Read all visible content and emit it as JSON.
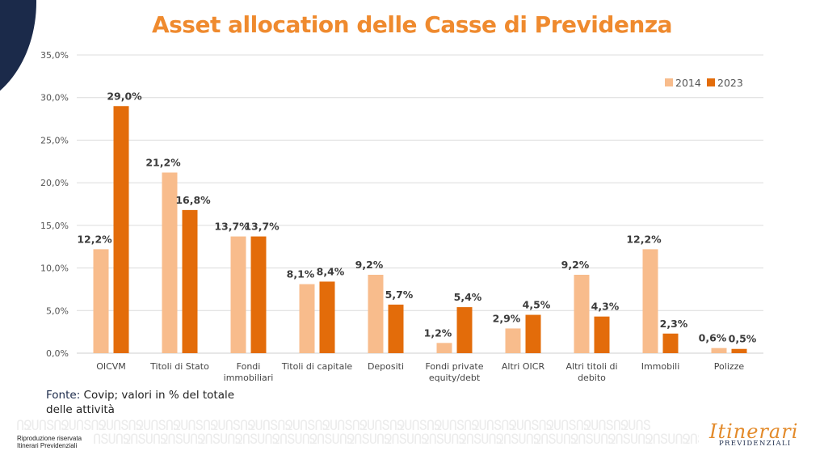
{
  "title": "Asset allocation delle Casse di Previdenza",
  "source": {
    "label": "Fonte:",
    "text": " Covip; valori in % del totale",
    "text2": "delle attività"
  },
  "footer": {
    "line1": "Riproduzione riservata",
    "line2": "Itinerari Previdenziali",
    "pattern_row1": "ՈՋՍՈՏՈՋՍՈՏՈՋՍՈՏՈՋՍՈՏՈՋՍՈՏՈՋՍՈՏՈՋՍՈՏՈՋՍՈՏՈՋՍՈՏՈՋՍՈՏՈՋՍՈՏՈՋՍՈՏՈՋՍՈՏՈՋՍՈՏՈՋՍՈՏՈՋՍՈՏՈՋՍՈՏ",
    "pattern_row2": "ՈՏՍՈՋՈՏՍՈՋՈՏՍՈՋՈՏՍՈՋՈՏՍՈՋՈՏՍՈՋՈՏՍՈՋՈՏՍՈՋՈՏՍՈՋՈՏՍՈՋՈՏՍՈՋՈՏՍՈՋՈՏՍՈՋՈՏՍՈՋՈՏՍՈՋՈՏՍՈՋՈՏՍՈՋ"
  },
  "logo": {
    "script": "Itinerari",
    "sub": "PREVIDENZIALI"
  },
  "chart_data": {
    "type": "bar",
    "title": "Asset allocation delle Casse di Previdenza",
    "xlabel": "",
    "ylabel": "",
    "ylim": [
      0,
      35
    ],
    "yticks": [
      0,
      5,
      10,
      15,
      20,
      25,
      30,
      35
    ],
    "ytick_labels": [
      "0,0%",
      "5,0%",
      "10,0%",
      "15,0%",
      "20,0%",
      "25,0%",
      "30,0%",
      "35,0%"
    ],
    "grid": true,
    "legend_position": "top-right",
    "categories": [
      [
        "OICVM"
      ],
      [
        "Titoli di Stato"
      ],
      [
        "Fondi",
        "immobiliari"
      ],
      [
        "Titoli di capitale"
      ],
      [
        "Depositi"
      ],
      [
        "Fondi private",
        "equity/debt"
      ],
      [
        "Altri OICR"
      ],
      [
        "Altri titoli di",
        "debito"
      ],
      [
        "Immobili"
      ],
      [
        "Polizze"
      ]
    ],
    "series": [
      {
        "name": "2014",
        "color": "#f8bc8c",
        "values": [
          12.2,
          21.2,
          13.7,
          8.1,
          9.2,
          1.2,
          2.9,
          9.2,
          12.2,
          0.6
        ],
        "labels": [
          "12,2%",
          "21,2%",
          "13,7%",
          "8,1%",
          "9,2%",
          "1,2%",
          "2,9%",
          "9,2%",
          "12,2%",
          "0,6%"
        ]
      },
      {
        "name": "2023",
        "color": "#e36c0a",
        "values": [
          29.0,
          16.8,
          13.7,
          8.4,
          5.7,
          5.4,
          4.5,
          4.3,
          2.3,
          0.5
        ],
        "labels": [
          "29,0%",
          "16,8%",
          "13,7%",
          "8,4%",
          "5,7%",
          "5,4%",
          "4,5%",
          "4,3%",
          "2,3%",
          "0,5%"
        ]
      }
    ]
  }
}
